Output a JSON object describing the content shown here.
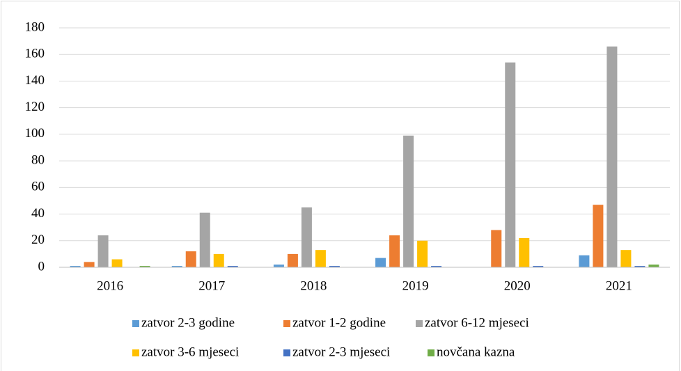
{
  "chart_data": {
    "type": "bar",
    "categories": [
      "2016",
      "2017",
      "2018",
      "2019",
      "2020",
      "2021"
    ],
    "series": [
      {
        "name": "zatvor 2-3 godine",
        "color": "#5b9bd5",
        "values": [
          1,
          1,
          2,
          7,
          0,
          9
        ]
      },
      {
        "name": "zatvor 1-2 godine",
        "color": "#ed7d31",
        "values": [
          4,
          12,
          10,
          24,
          28,
          47
        ]
      },
      {
        "name": "zatvor 6-12 mjeseci",
        "color": "#a5a5a5",
        "values": [
          24,
          41,
          45,
          99,
          154,
          166
        ]
      },
      {
        "name": "zatvor 3-6 mjeseci",
        "color": "#ffc000",
        "values": [
          6,
          10,
          13,
          20,
          22,
          13
        ]
      },
      {
        "name": "zatvor 2-3 mjeseci",
        "color": "#4472c4",
        "values": [
          0,
          1,
          1,
          1,
          1,
          1
        ]
      },
      {
        "name": "novčana kazna",
        "color": "#70ad47",
        "values": [
          1,
          0,
          0,
          0,
          0,
          2
        ]
      }
    ],
    "ylim": [
      0,
      180
    ],
    "yticks": [
      0,
      20,
      40,
      60,
      80,
      100,
      120,
      140,
      160,
      180
    ],
    "grid": true,
    "legend": "bottom"
  }
}
